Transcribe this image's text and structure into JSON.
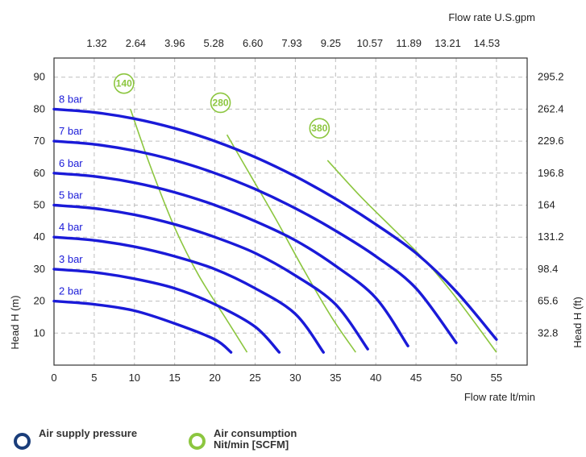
{
  "chart_data": {
    "type": "line",
    "x_axis": {
      "label": "Flow rate  lt/min",
      "min": 0,
      "max": 60,
      "ticks": [
        "0",
        "5",
        "10",
        "15",
        "20",
        "25",
        "30",
        "35",
        "40",
        "45",
        "50",
        "55"
      ]
    },
    "x2_axis": {
      "label": "Flow rate U.S.gpm",
      "ticks": [
        "1.32",
        "2.64",
        "3.96",
        "5.28",
        "6.60",
        "7.93",
        "9.25",
        "10.57",
        "11.89",
        "13.21",
        "14.53"
      ]
    },
    "y_axis": {
      "label": "Head H (m)",
      "min": 0,
      "max": 100,
      "ticks": [
        "10",
        "20",
        "30",
        "40",
        "50",
        "60",
        "70",
        "80",
        "90"
      ]
    },
    "y2_axis": {
      "label": "Head H (ft)",
      "ticks": [
        "32.8",
        "65.6",
        "98.4",
        "131.2",
        "164",
        "196.8",
        "229.6",
        "262.4",
        "295.2"
      ]
    },
    "grid": true,
    "series": [
      {
        "name": "8 bar",
        "kind": "air_supply_pressure",
        "points": [
          [
            0,
            80
          ],
          [
            5,
            79
          ],
          [
            10,
            77
          ],
          [
            15,
            74
          ],
          [
            20,
            70
          ],
          [
            25,
            65
          ],
          [
            30,
            59
          ],
          [
            35,
            52
          ],
          [
            40,
            44
          ],
          [
            45,
            35
          ],
          [
            50,
            23
          ],
          [
            55,
            8
          ]
        ]
      },
      {
        "name": "7 bar",
        "kind": "air_supply_pressure",
        "points": [
          [
            0,
            70
          ],
          [
            5,
            69
          ],
          [
            10,
            67
          ],
          [
            15,
            64
          ],
          [
            20,
            60
          ],
          [
            25,
            55
          ],
          [
            30,
            49
          ],
          [
            35,
            42
          ],
          [
            40,
            34
          ],
          [
            45,
            24
          ],
          [
            50,
            7
          ]
        ]
      },
      {
        "name": "6 bar",
        "kind": "air_supply_pressure",
        "points": [
          [
            0,
            60
          ],
          [
            5,
            59
          ],
          [
            10,
            57
          ],
          [
            15,
            54
          ],
          [
            20,
            50
          ],
          [
            25,
            45
          ],
          [
            30,
            39
          ],
          [
            35,
            31
          ],
          [
            40,
            21
          ],
          [
            44,
            6
          ]
        ]
      },
      {
        "name": "5 bar",
        "kind": "air_supply_pressure",
        "points": [
          [
            0,
            50
          ],
          [
            5,
            49
          ],
          [
            10,
            47
          ],
          [
            15,
            44
          ],
          [
            20,
            40
          ],
          [
            25,
            35
          ],
          [
            30,
            28
          ],
          [
            35,
            19
          ],
          [
            39,
            5
          ]
        ]
      },
      {
        "name": "4 bar",
        "kind": "air_supply_pressure",
        "points": [
          [
            0,
            40
          ],
          [
            5,
            39
          ],
          [
            10,
            37
          ],
          [
            15,
            34
          ],
          [
            20,
            30
          ],
          [
            25,
            24
          ],
          [
            30,
            16
          ],
          [
            33.5,
            4
          ]
        ]
      },
      {
        "name": "3 bar",
        "kind": "air_supply_pressure",
        "points": [
          [
            0,
            30
          ],
          [
            5,
            29
          ],
          [
            10,
            27
          ],
          [
            15,
            24
          ],
          [
            20,
            19
          ],
          [
            25,
            12
          ],
          [
            28,
            4
          ]
        ]
      },
      {
        "name": "2 bar",
        "kind": "air_supply_pressure",
        "points": [
          [
            0,
            20
          ],
          [
            5,
            19
          ],
          [
            10,
            17
          ],
          [
            15,
            13
          ],
          [
            20,
            8
          ],
          [
            22,
            4
          ]
        ]
      }
    ],
    "consumption_lines": [
      {
        "name": "140",
        "points": [
          [
            9.5,
            80
          ],
          [
            12,
            62
          ],
          [
            15,
            43
          ],
          [
            18,
            28
          ],
          [
            21.5,
            14
          ],
          [
            24,
            4
          ]
        ]
      },
      {
        "name": "280",
        "points": [
          [
            21.5,
            72
          ],
          [
            24.5,
            59
          ],
          [
            27.5,
            46
          ],
          [
            31,
            30
          ],
          [
            34.5,
            15
          ],
          [
            37.5,
            4
          ]
        ]
      },
      {
        "name": "380",
        "points": [
          [
            34,
            64
          ],
          [
            38,
            53
          ],
          [
            42,
            43
          ],
          [
            46,
            33
          ],
          [
            50,
            21
          ],
          [
            55,
            4
          ]
        ]
      }
    ],
    "bubble_y": 88,
    "legend": [
      {
        "label": "Air supply pressure",
        "color": "#1a1ad8"
      },
      {
        "label": "Air consumption Nit/min [SCFM]",
        "color": "#8cc63f"
      }
    ]
  },
  "colors": {
    "pressure": "#1a1ad8",
    "consumption": "#8cc63f",
    "grid": "#bdbdbd",
    "frame": "#333333"
  }
}
